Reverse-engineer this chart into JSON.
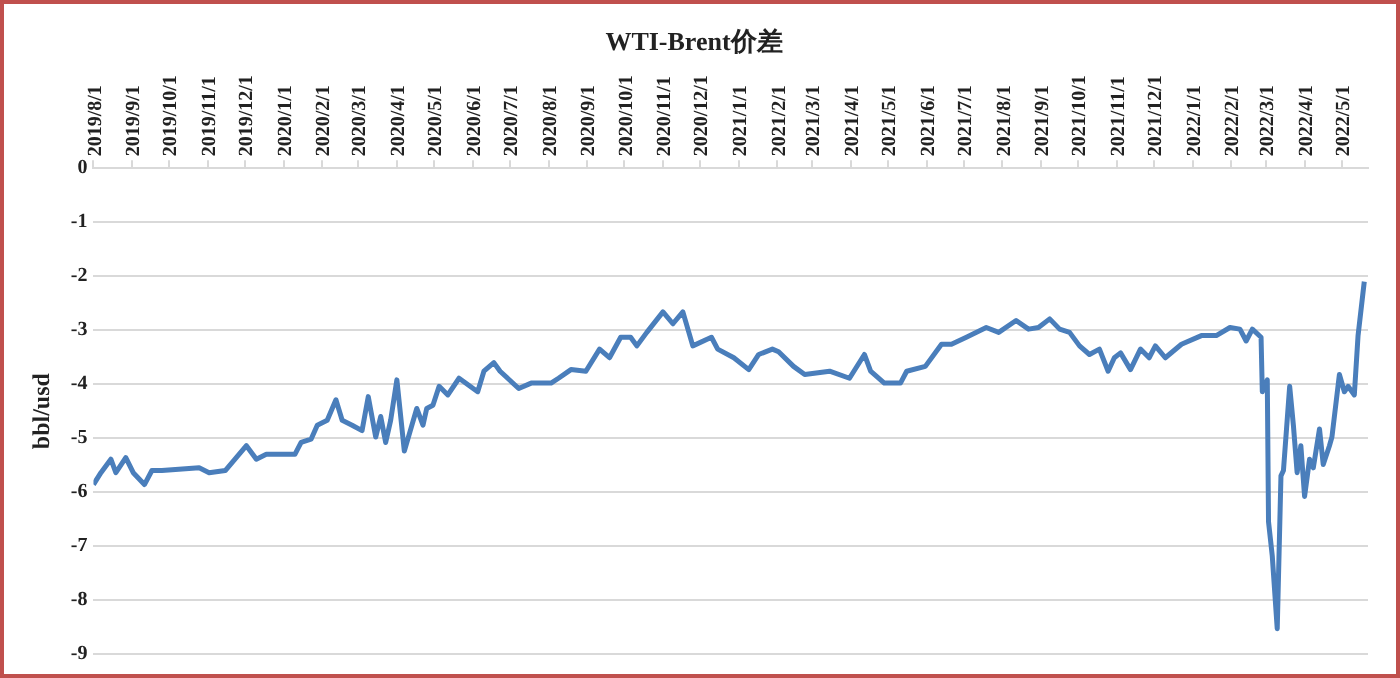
{
  "chart_data": {
    "type": "line",
    "title": "WTI-Brent价差",
    "ylabel": "bbl/usd",
    "x": [
      "2019-08-01",
      "2019-08-07",
      "2019-08-15",
      "2019-08-19",
      "2019-08-27",
      "2019-09-02",
      "2019-09-11",
      "2019-09-17",
      "2019-09-25",
      "2019-10-25",
      "2019-11-02",
      "2019-11-15",
      "2019-12-02",
      "2019-12-10",
      "2019-12-18",
      "2020-01-10",
      "2020-01-15",
      "2020-01-23",
      "2020-01-28",
      "2020-02-05",
      "2020-02-12",
      "2020-02-17",
      "2020-02-25",
      "2020-03-04",
      "2020-03-09",
      "2020-03-15",
      "2020-03-19",
      "2020-03-23",
      "2020-03-27",
      "2020-04-01",
      "2020-04-07",
      "2020-04-17",
      "2020-04-22",
      "2020-04-25",
      "2020-04-30",
      "2020-05-05",
      "2020-05-12",
      "2020-05-21",
      "2020-06-05",
      "2020-06-10",
      "2020-06-18",
      "2020-06-23",
      "2020-07-08",
      "2020-07-18",
      "2020-08-03",
      "2020-08-09",
      "2020-08-19",
      "2020-08-31",
      "2020-09-11",
      "2020-09-19",
      "2020-09-28",
      "2020-10-06",
      "2020-10-11",
      "2020-10-19",
      "2020-11-01",
      "2020-11-09",
      "2020-11-17",
      "2020-11-25",
      "2020-12-10",
      "2020-12-15",
      "2020-12-28",
      "2021-01-09",
      "2021-01-17",
      "2021-01-28",
      "2021-02-02",
      "2021-02-14",
      "2021-02-23",
      "2021-03-15",
      "2021-03-31",
      "2021-04-12",
      "2021-04-17",
      "2021-04-28",
      "2021-05-11",
      "2021-05-16",
      "2021-05-31",
      "2021-06-13",
      "2021-06-21",
      "2021-07-03",
      "2021-07-19",
      "2021-07-29",
      "2021-08-12",
      "2021-08-22",
      "2021-08-30",
      "2021-09-08",
      "2021-09-16",
      "2021-09-24",
      "2021-10-02",
      "2021-10-10",
      "2021-10-18",
      "2021-10-25",
      "2021-10-30",
      "2021-11-04",
      "2021-11-12",
      "2021-11-20",
      "2021-11-27",
      "2021-12-02",
      "2021-12-10",
      "2021-12-23",
      "2022-01-08",
      "2022-01-20",
      "2022-01-31",
      "2022-02-08",
      "2022-02-13",
      "2022-02-18",
      "2022-02-25",
      "2022-02-26",
      "2022-03-02",
      "2022-03-03",
      "2022-03-06",
      "2022-03-10",
      "2022-03-13",
      "2022-03-15",
      "2022-03-20",
      "2022-03-23",
      "2022-03-26",
      "2022-03-29",
      "2022-04-01",
      "2022-04-05",
      "2022-04-08",
      "2022-04-13",
      "2022-04-16",
      "2022-04-21",
      "2022-04-23",
      "2022-04-29",
      "2022-05-03",
      "2022-05-06",
      "2022-05-11",
      "2022-05-14",
      "2022-05-19"
    ],
    "series": [
      {
        "color": "#4a7ebb",
        "values": [
          -5.86,
          -5.64,
          -5.39,
          -5.64,
          -5.36,
          -5.64,
          -5.86,
          -5.6,
          -5.6,
          -5.55,
          -5.64,
          -5.6,
          -5.14,
          -5.39,
          -5.3,
          -5.3,
          -5.08,
          -5.02,
          -4.76,
          -4.67,
          -4.29,
          -4.67,
          -4.76,
          -4.86,
          -4.23,
          -4.98,
          -4.6,
          -5.08,
          -4.67,
          -3.92,
          -5.24,
          -4.45,
          -4.76,
          -4.45,
          -4.39,
          -4.04,
          -4.2,
          -3.89,
          -4.14,
          -3.76,
          -3.6,
          -3.76,
          -4.08,
          -3.98,
          -3.98,
          -3.89,
          -3.73,
          -3.76,
          -3.35,
          -3.51,
          -3.13,
          -3.13,
          -3.29,
          -3.04,
          -2.66,
          -2.88,
          -2.66,
          -3.29,
          -3.13,
          -3.35,
          -3.51,
          -3.73,
          -3.45,
          -3.35,
          -3.4,
          -3.67,
          -3.82,
          -3.76,
          -3.89,
          -3.45,
          -3.76,
          -3.98,
          -3.98,
          -3.76,
          -3.67,
          -3.26,
          -3.26,
          -3.13,
          -2.95,
          -3.04,
          -2.82,
          -2.98,
          -2.95,
          -2.79,
          -2.98,
          -3.04,
          -3.29,
          -3.45,
          -3.35,
          -3.76,
          -3.51,
          -3.42,
          -3.73,
          -3.35,
          -3.51,
          -3.29,
          -3.51,
          -3.26,
          -3.1,
          -3.1,
          -2.95,
          -2.98,
          -3.2,
          -2.98,
          -3.13,
          -4.14,
          -3.92,
          -6.55,
          -7.18,
          -8.53,
          -5.7,
          -5.6,
          -4.04,
          -4.76,
          -5.64,
          -5.14,
          -6.08,
          -5.39,
          -5.55,
          -4.83,
          -5.49,
          -5.14,
          -4.98,
          -3.82,
          -4.14,
          -4.04,
          -4.2,
          -3.1,
          -2.1
        ]
      }
    ],
    "xlim": [
      "2019-08-01",
      "2022-05-22"
    ],
    "xticks": [
      {
        "value": "2019-08-01",
        "label": "2019/8/1"
      },
      {
        "value": "2019-09-01",
        "label": "2019/9/1"
      },
      {
        "value": "2019-10-01",
        "label": "2019/10/1"
      },
      {
        "value": "2019-11-01",
        "label": "2019/11/1"
      },
      {
        "value": "2019-12-01",
        "label": "2019/12/1"
      },
      {
        "value": "2020-01-01",
        "label": "2020/1/1"
      },
      {
        "value": "2020-02-01",
        "label": "2020/2/1"
      },
      {
        "value": "2020-03-01",
        "label": "2020/3/1"
      },
      {
        "value": "2020-04-01",
        "label": "2020/4/1"
      },
      {
        "value": "2020-05-01",
        "label": "2020/5/1"
      },
      {
        "value": "2020-06-01",
        "label": "2020/6/1"
      },
      {
        "value": "2020-07-01",
        "label": "2020/7/1"
      },
      {
        "value": "2020-08-01",
        "label": "2020/8/1"
      },
      {
        "value": "2020-09-01",
        "label": "2020/9/1"
      },
      {
        "value": "2020-10-01",
        "label": "2020/10/1"
      },
      {
        "value": "2020-11-01",
        "label": "2020/11/1"
      },
      {
        "value": "2020-12-01",
        "label": "2020/12/1"
      },
      {
        "value": "2021-01-01",
        "label": "2021/1/1"
      },
      {
        "value": "2021-02-01",
        "label": "2021/2/1"
      },
      {
        "value": "2021-03-01",
        "label": "2021/3/1"
      },
      {
        "value": "2021-04-01",
        "label": "2021/4/1"
      },
      {
        "value": "2021-05-01",
        "label": "2021/5/1"
      },
      {
        "value": "2021-06-01",
        "label": "2021/6/1"
      },
      {
        "value": "2021-07-01",
        "label": "2021/7/1"
      },
      {
        "value": "2021-08-01",
        "label": "2021/8/1"
      },
      {
        "value": "2021-09-01",
        "label": "2021/9/1"
      },
      {
        "value": "2021-10-01",
        "label": "2021/10/1"
      },
      {
        "value": "2021-11-01",
        "label": "2021/11/1"
      },
      {
        "value": "2021-12-01",
        "label": "2021/12/1"
      },
      {
        "value": "2022-01-01",
        "label": "2022/1/1"
      },
      {
        "value": "2022-02-01",
        "label": "2022/2/1"
      },
      {
        "value": "2022-03-01",
        "label": "2022/3/1"
      },
      {
        "value": "2022-04-01",
        "label": "2022/4/1"
      },
      {
        "value": "2022-05-01",
        "label": "2022/5/1"
      }
    ],
    "ylim": [
      -9,
      0
    ],
    "yticks": [
      -9,
      -8,
      -7,
      -6,
      -5,
      -4,
      -3,
      -2,
      -1,
      0
    ],
    "grid": "y",
    "marker": "none",
    "line_style": "solid"
  }
}
